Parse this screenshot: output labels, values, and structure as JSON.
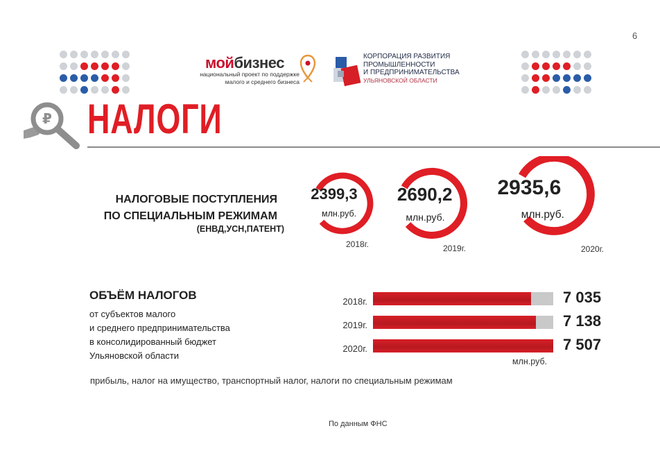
{
  "page_number": "6",
  "logos": {
    "moy_a": "мой",
    "moy_b": "бизнес",
    "moy_line1": "национальный проект по поддержке",
    "moy_line2": "малого и среднего бизнеса",
    "corp_line1": "КОРПОРАЦИЯ РАЗВИТИЯ",
    "corp_line2": "ПРОМЫШЛЕННОСТИ",
    "corp_line3": "И ПРЕДПРИНИМАТЕЛЬСТВА",
    "corp_line4": "УЛЬЯНОВСКОЙ ОБЛАСТИ"
  },
  "title": "НАЛОГИ",
  "colors": {
    "accent": "#e01e25",
    "dark_red": "#b81920",
    "blue": "#2a5ca8",
    "grey": "#c9c9c9"
  },
  "section1": {
    "line1": "НАЛОГОВЫЕ ПОСТУПЛЕНИЯ",
    "line2": "ПО СПЕЦИАЛЬНЫМ РЕЖИМАМ",
    "line3": "(ЕНВД,УСН,ПАТЕНТ)"
  },
  "section2": {
    "heading": "ОБЪЁМ НАЛОГОВ",
    "line1": "от субъектов малого",
    "line2": "и среднего предпринимательства",
    "line3": "в консолидированный бюджет",
    "line4": "Ульяновской области",
    "unit": "млн.руб."
  },
  "note": "прибыль, налог на имущество, транспортный налог, налоги по специальным режимам",
  "source": "По данным ФНС",
  "chart_data": [
    {
      "type": "pie",
      "categories": [
        "2018г.",
        "2019г.",
        "2020г."
      ],
      "values": [
        2399.3,
        2690.2,
        2935.6
      ],
      "value_labels": [
        "2399,3",
        "2690,2",
        "2935,6"
      ],
      "unit": "млн.руб."
    },
    {
      "type": "bar",
      "categories": [
        "2018г.",
        "2019г.",
        "2020г."
      ],
      "values": [
        7035,
        7138,
        7507
      ],
      "value_labels": [
        "7 035",
        "7 138",
        "7 507"
      ],
      "xlim": [
        0,
        7507
      ],
      "unit": "млн.руб."
    }
  ]
}
